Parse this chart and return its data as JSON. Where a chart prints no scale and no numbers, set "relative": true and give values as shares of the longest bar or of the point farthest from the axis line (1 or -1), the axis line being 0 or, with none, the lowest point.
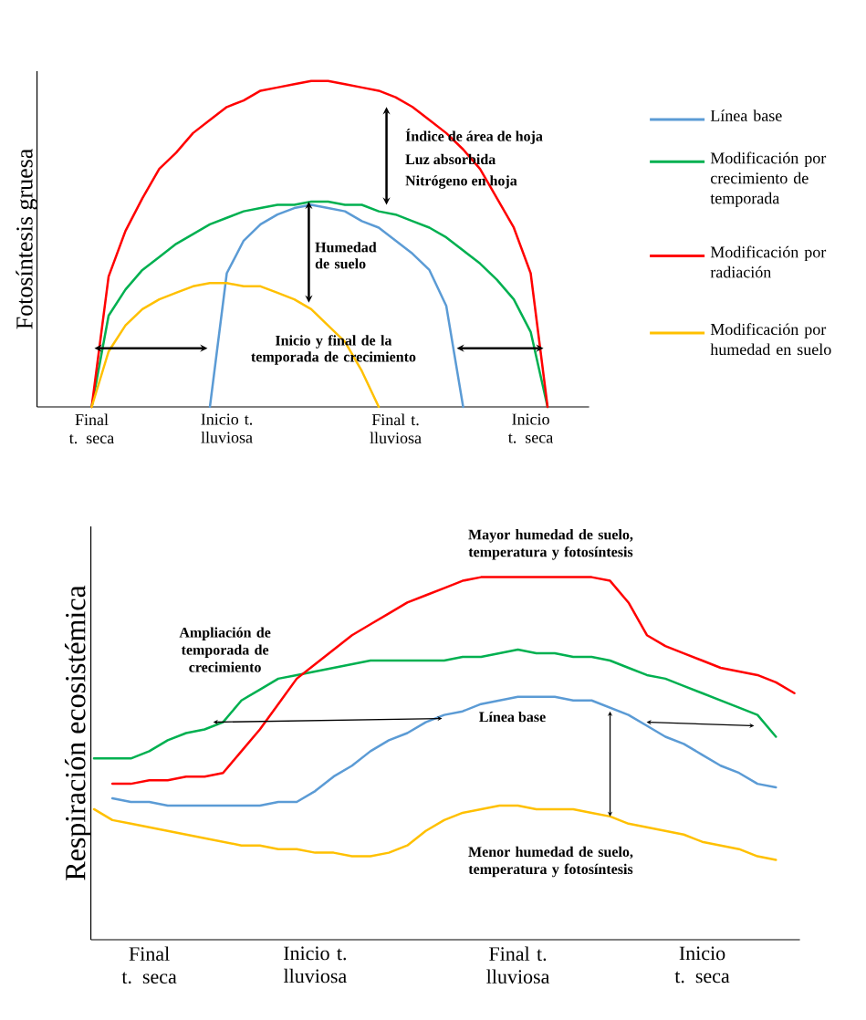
{
  "chart_data": [
    {
      "type": "line",
      "relative": true,
      "ylabel": "Fotosíntesis gruesa",
      "categories": [
        null,
        null,
        null,
        "Final t. seca",
        null,
        null,
        null,
        null,
        null,
        null,
        null,
        "Inicio t. lluviosa",
        null,
        null,
        null,
        null,
        null,
        null,
        null,
        null,
        null,
        "Final t. lluviosa",
        null,
        null,
        null,
        null,
        null,
        null,
        null,
        "Inicio t. seca",
        null,
        null,
        null
      ],
      "tick_labels": "x",
      "legend": "right",
      "series": [
        {
          "name": "Línea base",
          "color": "#5b9bd5",
          "values": [
            null,
            null,
            null,
            null,
            null,
            null,
            null,
            null,
            null,
            null,
            0,
            0.41,
            0.51,
            0.56,
            0.59,
            0.61,
            0.62,
            0.61,
            0.6,
            0.57,
            0.55,
            0.51,
            0.47,
            0.42,
            0.31,
            0,
            null,
            null,
            null,
            null,
            null,
            null,
            null
          ]
        },
        {
          "name": "Modificación por crecimiento de temporada",
          "color": "#00b050",
          "values": [
            null,
            null,
            null,
            0,
            0.28,
            0.36,
            0.42,
            0.46,
            0.5,
            0.53,
            0.56,
            0.58,
            0.6,
            0.61,
            0.62,
            0.62,
            0.63,
            0.63,
            0.62,
            0.62,
            0.6,
            0.59,
            0.57,
            0.55,
            0.52,
            0.48,
            0.44,
            0.39,
            0.33,
            0.23,
            0,
            null,
            null
          ]
        },
        {
          "name": "Modificación por radiación",
          "color": "#ff0000",
          "values": [
            null,
            null,
            null,
            0,
            0.4,
            0.54,
            0.64,
            0.73,
            0.78,
            0.84,
            0.88,
            0.92,
            0.94,
            0.97,
            0.98,
            0.99,
            1.0,
            1.0,
            0.99,
            0.98,
            0.97,
            0.95,
            0.92,
            0.88,
            0.84,
            0.79,
            0.73,
            0.64,
            0.55,
            0.41,
            0,
            null,
            null
          ]
        },
        {
          "name": "Modificación por  humedad en suelo",
          "color": "#ffc000",
          "values": [
            null,
            null,
            null,
            0,
            0.17,
            0.25,
            0.3,
            0.33,
            0.35,
            0.37,
            0.38,
            0.38,
            0.37,
            0.37,
            0.35,
            0.33,
            0.3,
            0.25,
            0.2,
            0.11,
            0,
            null,
            null,
            null,
            null,
            null,
            null,
            null,
            null,
            null,
            null,
            null,
            null
          ]
        }
      ],
      "annotations": [
        "Índice de área de hoja",
        "Luz absorbida",
        "Nitrógeno en hoja",
        "Humedad de suelo",
        "Inicio y final de la temporada de crecimiento"
      ]
    },
    {
      "type": "line",
      "relative": true,
      "ylabel": "Respiración ecosistémica",
      "categories": [
        null,
        null,
        null,
        "Final t. seca",
        null,
        null,
        null,
        null,
        null,
        null,
        null,
        null,
        "Inicio t. lluviosa",
        null,
        null,
        null,
        null,
        null,
        null,
        null,
        null,
        null,
        null,
        "Final t. lluviosa",
        null,
        null,
        null,
        null,
        null,
        null,
        null,
        null,
        null,
        "Inicio t. seca",
        null,
        null,
        null,
        null,
        null
      ],
      "tick_labels": "x",
      "series": [
        {
          "color": "#00b050",
          "values": [
            0.5,
            0.5,
            0.5,
            0.52,
            0.55,
            0.57,
            0.58,
            0.6,
            0.66,
            0.69,
            0.72,
            0.73,
            0.74,
            0.75,
            0.76,
            0.77,
            0.77,
            0.77,
            0.77,
            0.77,
            0.78,
            0.78,
            0.79,
            0.8,
            0.79,
            0.79,
            0.78,
            0.78,
            0.77,
            0.75,
            0.73,
            0.72,
            0.7,
            0.68,
            0.66,
            0.64,
            0.62,
            0.56,
            null
          ]
        },
        {
          "color": "#ff0000",
          "values": [
            null,
            0.43,
            0.43,
            0.44,
            0.44,
            0.45,
            0.45,
            0.46,
            0.52,
            0.58,
            0.65,
            0.72,
            0.76,
            0.8,
            0.84,
            0.87,
            0.9,
            0.93,
            0.95,
            0.97,
            0.99,
            1.0,
            1.0,
            1.0,
            1.0,
            1.0,
            1.0,
            1.0,
            0.99,
            0.93,
            0.84,
            0.81,
            0.79,
            0.77,
            0.75,
            0.74,
            0.73,
            0.71,
            0.68
          ]
        },
        {
          "color": "#5b9bd5",
          "values": [
            null,
            0.39,
            0.38,
            0.38,
            0.37,
            0.37,
            0.37,
            0.37,
            0.37,
            0.37,
            0.38,
            0.38,
            0.41,
            0.45,
            0.48,
            0.52,
            0.55,
            0.57,
            0.6,
            0.62,
            0.63,
            0.65,
            0.66,
            0.67,
            0.67,
            0.67,
            0.66,
            0.66,
            0.64,
            0.62,
            0.59,
            0.56,
            0.54,
            0.51,
            0.48,
            0.46,
            0.43,
            0.42,
            null
          ]
        },
        {
          "color": "#ffc000",
          "values": [
            0.36,
            0.33,
            0.32,
            0.31,
            0.3,
            0.29,
            0.28,
            0.27,
            0.26,
            0.26,
            0.25,
            0.25,
            0.24,
            0.24,
            0.23,
            0.23,
            0.24,
            0.26,
            0.3,
            0.33,
            0.35,
            0.36,
            0.37,
            0.37,
            0.36,
            0.36,
            0.36,
            0.35,
            0.34,
            0.32,
            0.31,
            0.3,
            0.29,
            0.27,
            0.26,
            0.25,
            0.23,
            0.22,
            null
          ]
        }
      ],
      "annotations": [
        "Mayor humedad de suelo, temperatura y fotosíntesis",
        "Ampliación de temporada de crecimiento",
        "Línea base",
        "Menor humedad de suelo, temperatura y fotosíntesis"
      ]
    }
  ]
}
